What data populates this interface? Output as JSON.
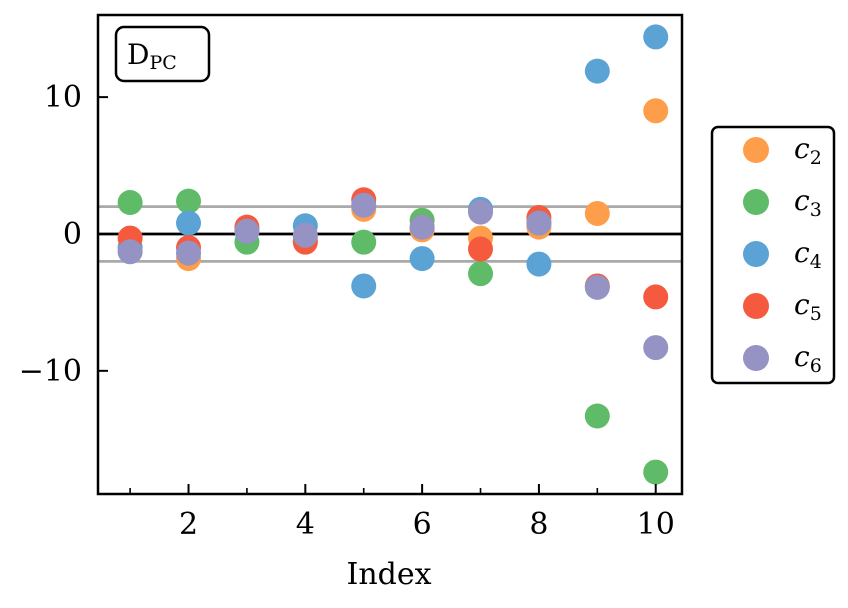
{
  "chart_data": {
    "type": "scatter",
    "panel_label": {
      "main": "D",
      "sub": "PC"
    },
    "xlabel": "Index",
    "ylabel": "",
    "xlim": [
      0.45,
      10.45
    ],
    "ylim": [
      -19,
      16
    ],
    "xticks_major": [
      2,
      4,
      6,
      8,
      10
    ],
    "xticks_minor": [
      1,
      3,
      5,
      7,
      9
    ],
    "yticks": [
      -10,
      0,
      10
    ],
    "ytick_labels": [
      "−10",
      "0",
      "10"
    ],
    "hlines": [
      {
        "y": 0,
        "color": "#000000"
      },
      {
        "y": 2,
        "color": "#aaaaaa"
      },
      {
        "y": -2,
        "color": "#aaaaaa"
      }
    ],
    "legend_position": "right",
    "x": [
      1,
      2,
      3,
      4,
      5,
      6,
      7,
      8,
      9,
      10
    ],
    "series": [
      {
        "name": "c",
        "sub": "2",
        "color": "#ff9e4a",
        "values": [
          -1.0,
          -1.8,
          0.3,
          -0.5,
          1.8,
          0.3,
          -0.3,
          0.5,
          1.5,
          9.0
        ]
      },
      {
        "name": "c",
        "sub": "3",
        "color": "#5fbb68",
        "values": [
          2.3,
          2.4,
          -0.6,
          -0.2,
          -0.6,
          1.0,
          -2.9,
          0.8,
          -13.3,
          -17.4
        ]
      },
      {
        "name": "c",
        "sub": "4",
        "color": "#5ba3d4",
        "values": [
          -1.0,
          0.8,
          0.2,
          0.6,
          -3.8,
          -1.8,
          1.8,
          -2.2,
          11.9,
          14.4
        ]
      },
      {
        "name": "c",
        "sub": "5",
        "color": "#f65a3e",
        "values": [
          -0.3,
          -1.0,
          0.5,
          -0.6,
          2.5,
          0.5,
          -1.1,
          1.2,
          -3.8,
          -4.6
        ]
      },
      {
        "name": "c",
        "sub": "6",
        "color": "#9592c4",
        "values": [
          -1.3,
          -1.4,
          0.2,
          -0.1,
          2.1,
          0.5,
          1.6,
          0.8,
          -3.9,
          -8.3
        ]
      }
    ]
  }
}
